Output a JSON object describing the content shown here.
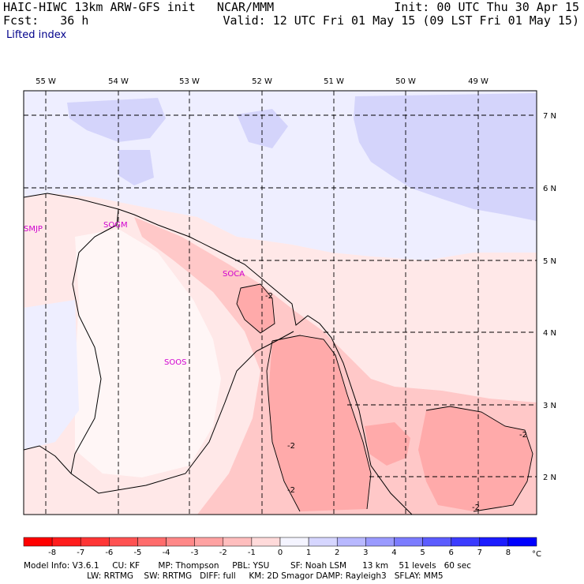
{
  "header": {
    "line1_left": "HAIC-HIWC 13km ARW-GFS init   NCAR/MMM",
    "line1_right": "Init: 00 UTC Thu 30 Apr 15",
    "line2_left": "Fcst:   36 h",
    "line2_right": "Valid: 12 UTC Fri 01 May 15 (09 LST Fri 01 May 15)",
    "field": "Lifted index"
  },
  "map": {
    "lon_labels": [
      "55 W",
      "54 W",
      "53 W",
      "52 W",
      "51 W",
      "50 W",
      "49 W"
    ],
    "lat_labels": [
      "7 N",
      "6 N",
      "5 N",
      "4 N",
      "3 N",
      "2 N"
    ],
    "stations": [
      "SMJP",
      "SOGM",
      "SOCA",
      "SOOS"
    ],
    "contour_labels": [
      "-2",
      "-2",
      "-2",
      "-2",
      "-2"
    ]
  },
  "colorbar": {
    "tick_labels": [
      "-8",
      "-7",
      "-6",
      "-5",
      "-4",
      "-3",
      "-2",
      "-1",
      "0",
      "1",
      "2",
      "3",
      "4",
      "5",
      "6",
      "7",
      "8"
    ],
    "unit": "°C",
    "colors": [
      "#ff0000",
      "#ff2020",
      "#ff3a3a",
      "#ff5656",
      "#ff7070",
      "#ff8c8c",
      "#ffa6a6",
      "#ffc6c6",
      "#ffe6e6",
      "#eeeeff",
      "#d2d2ff",
      "#b4b4ff",
      "#9898ff",
      "#7474ff",
      "#5656ff",
      "#3030ff",
      "#0000ff"
    ]
  },
  "footer": {
    "line1": "Model Info: V3.6.1     CU: KF       MP: Thompson     PBL: YSU        SF: Noah LSM      13 km    51 levels   60 sec",
    "line2": "                        LW: RRTMG    SW: RRTMG   DIFF: full     KM: 2D Smagor DAMP: Rayleigh3   SFLAY: MM5"
  }
}
